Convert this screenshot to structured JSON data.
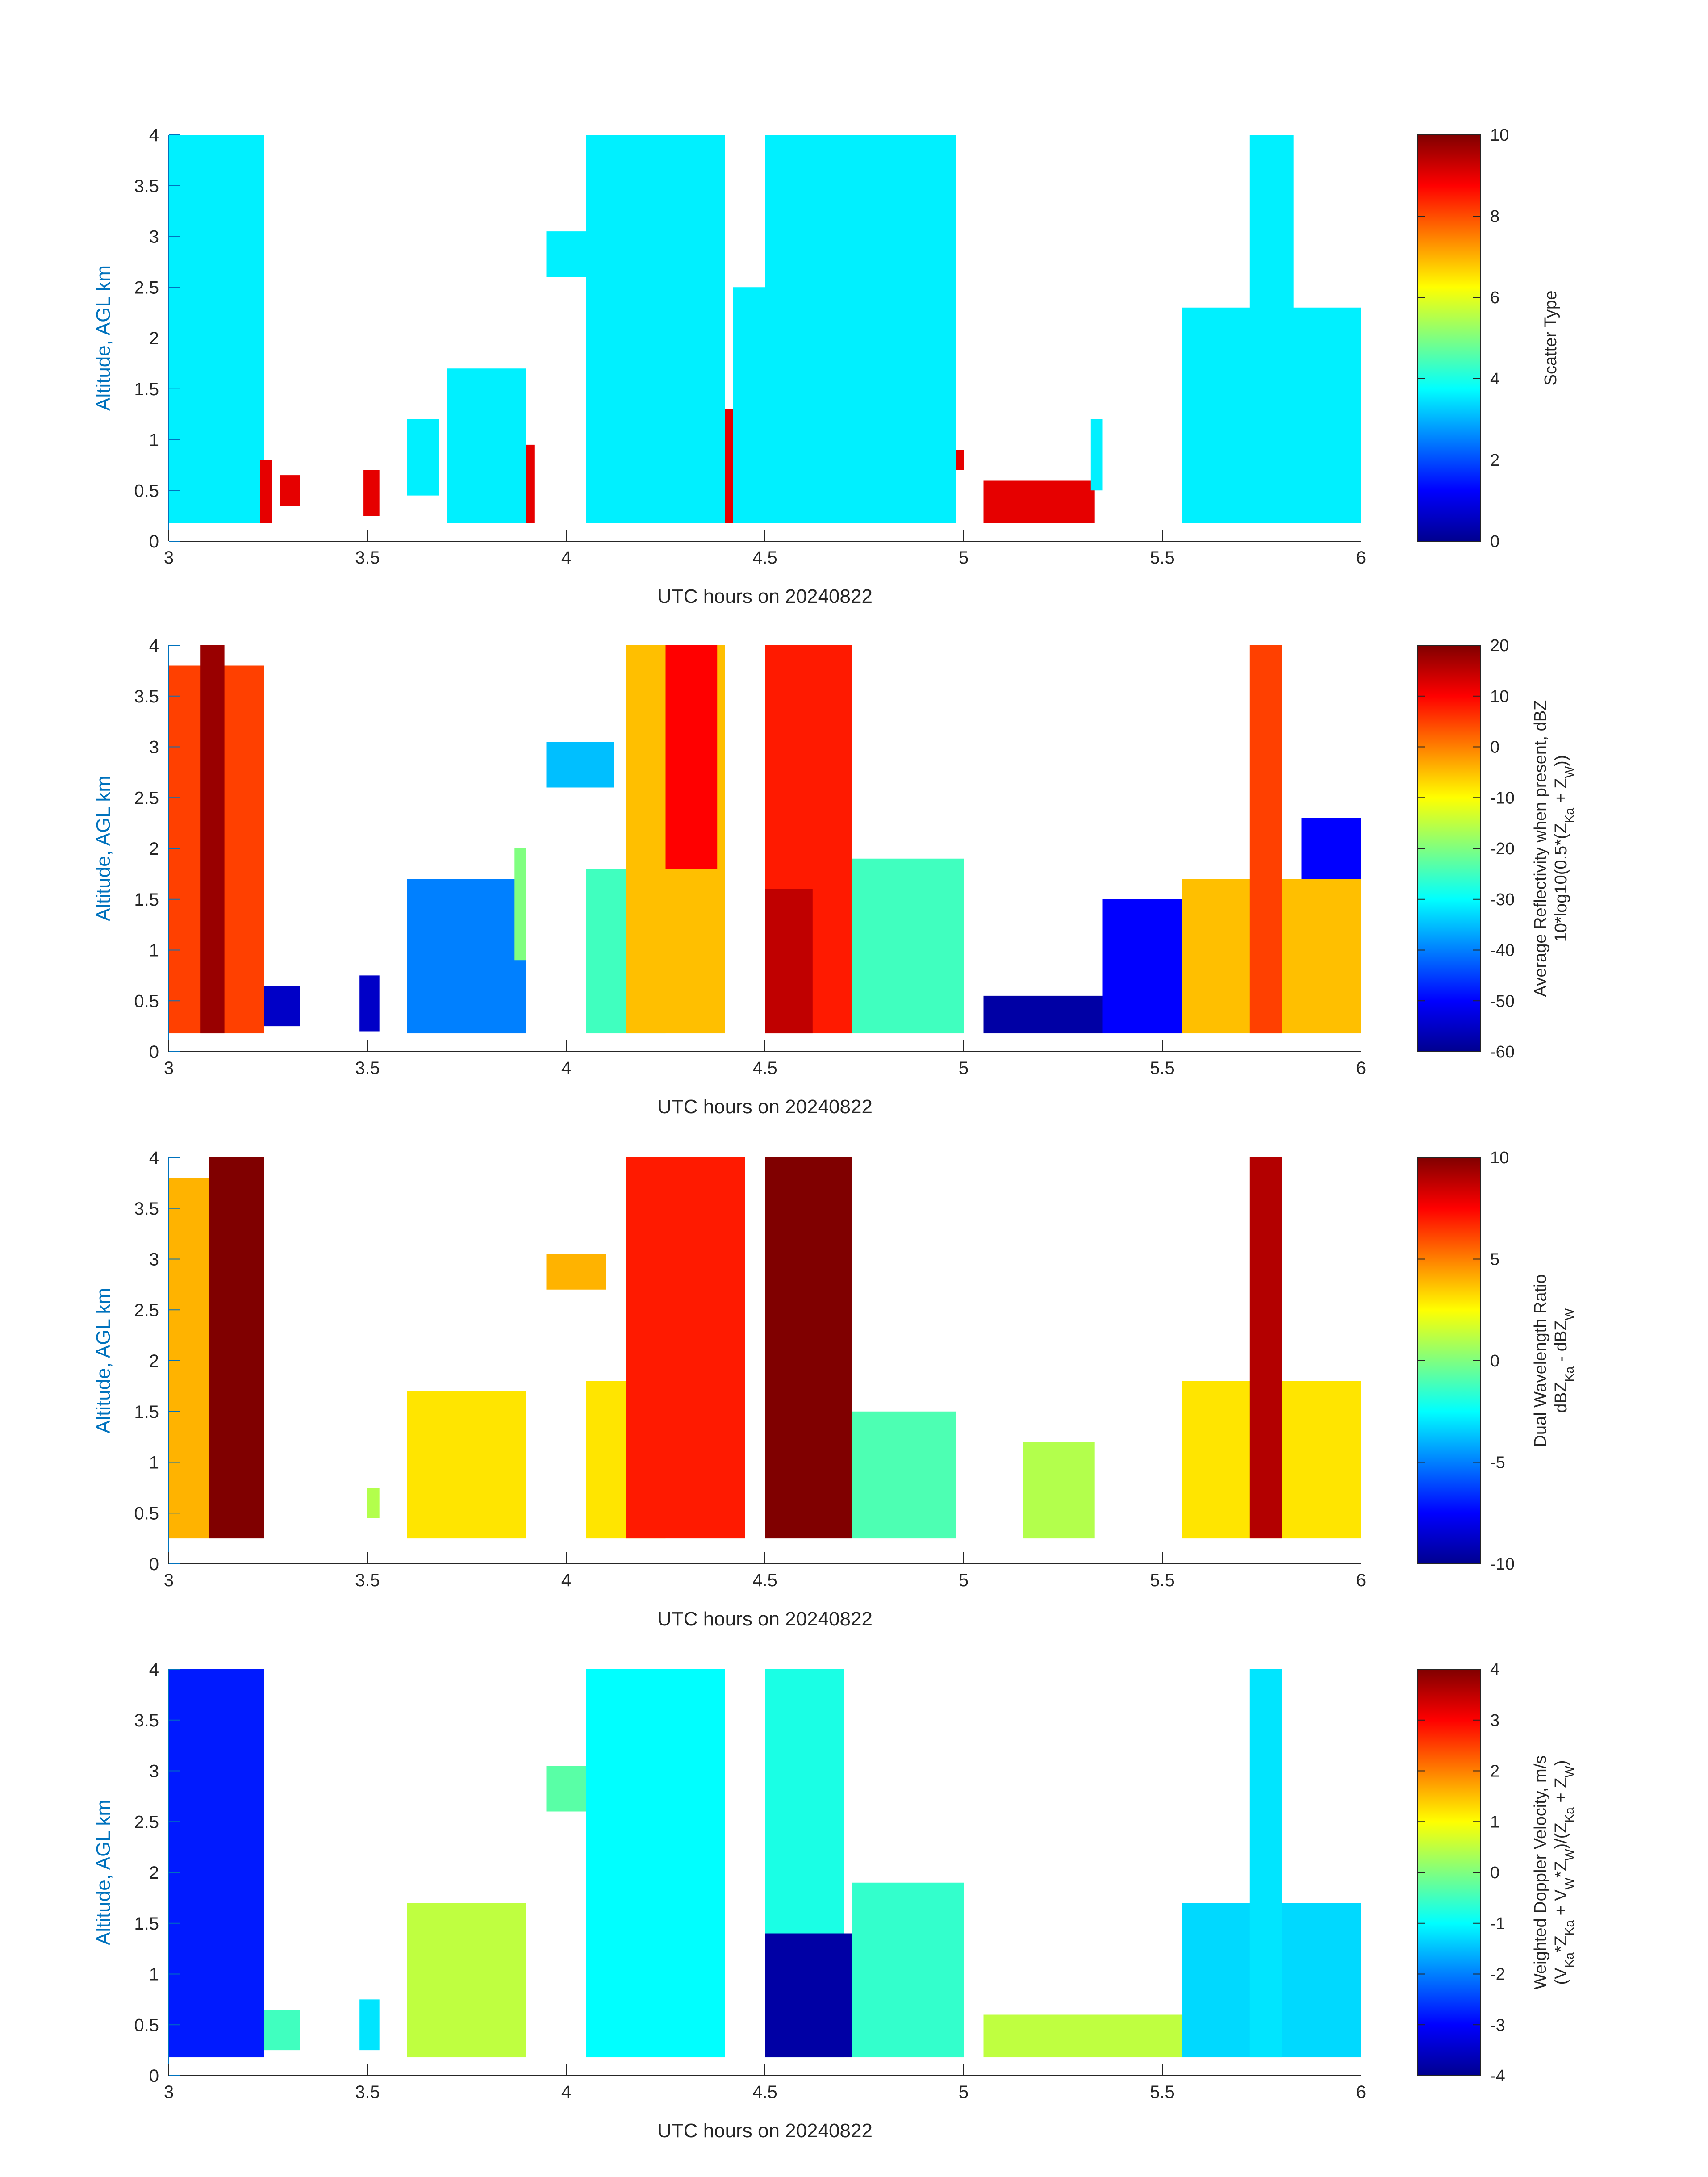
{
  "date": "20240822",
  "x_axis": {
    "label": "UTC hours on 20240822",
    "ticks": [
      "3",
      "3.5",
      "4",
      "4.5",
      "5",
      "5.5",
      "6"
    ],
    "range": [
      3,
      6
    ]
  },
  "y_axis": {
    "label": "Altitude, AGL km",
    "ticks": [
      "0",
      "0.5",
      "1",
      "1.5",
      "2",
      "2.5",
      "3",
      "3.5",
      "4"
    ],
    "range": [
      0,
      4
    ]
  },
  "chart_data": [
    {
      "type": "heatmap",
      "panel": 1,
      "xlabel": "UTC hours on 20240822",
      "ylabel": "Altitude, AGL km",
      "xlim": [
        3,
        6
      ],
      "ylim": [
        0,
        4
      ],
      "colorbar": {
        "label_lines": [
          "Scatter Type"
        ],
        "ticks": [
          "0",
          "2",
          "4",
          "6",
          "8",
          "10"
        ],
        "range": [
          0,
          10
        ]
      },
      "regions": [
        {
          "x": [
            3.0,
            3.24
          ],
          "y": [
            0.18,
            4.0
          ],
          "value": 3.6
        },
        {
          "x": [
            3.23,
            3.26
          ],
          "y": [
            0.18,
            0.8
          ],
          "value": 9.0
        },
        {
          "x": [
            3.28,
            3.33
          ],
          "y": [
            0.35,
            0.65
          ],
          "value": 9.0
        },
        {
          "x": [
            3.49,
            3.53
          ],
          "y": [
            0.25,
            0.7
          ],
          "value": 9.0
        },
        {
          "x": [
            3.6,
            3.68
          ],
          "y": [
            0.45,
            1.2
          ],
          "value": 3.6
        },
        {
          "x": [
            3.7,
            3.9
          ],
          "y": [
            0.18,
            1.7
          ],
          "value": 3.6
        },
        {
          "x": [
            3.9,
            3.92
          ],
          "y": [
            0.18,
            0.95
          ],
          "value": 9.0
        },
        {
          "x": [
            3.95,
            4.08
          ],
          "y": [
            2.6,
            3.05
          ],
          "value": 3.6
        },
        {
          "x": [
            4.05,
            4.4
          ],
          "y": [
            0.18,
            4.0
          ],
          "value": 3.6
        },
        {
          "x": [
            4.4,
            4.42
          ],
          "y": [
            0.18,
            1.3
          ],
          "value": 9.0
        },
        {
          "x": [
            4.42,
            4.5
          ],
          "y": [
            0.18,
            2.5
          ],
          "value": 3.6
        },
        {
          "x": [
            4.5,
            4.98
          ],
          "y": [
            0.18,
            4.0
          ],
          "value": 3.6
        },
        {
          "x": [
            4.98,
            5.0
          ],
          "y": [
            0.7,
            0.9
          ],
          "value": 9.0
        },
        {
          "x": [
            5.05,
            5.33
          ],
          "y": [
            0.18,
            0.6
          ],
          "value": 9.0
        },
        {
          "x": [
            5.32,
            5.35
          ],
          "y": [
            0.5,
            1.2
          ],
          "value": 3.6
        },
        {
          "x": [
            5.55,
            6.0
          ],
          "y": [
            0.18,
            2.3
          ],
          "value": 3.6
        },
        {
          "x": [
            5.72,
            5.83
          ],
          "y": [
            0.18,
            4.0
          ],
          "value": 3.6
        }
      ]
    },
    {
      "type": "heatmap",
      "panel": 2,
      "xlabel": "UTC hours on 20240822",
      "ylabel": "Altitude, AGL km",
      "xlim": [
        3,
        6
      ],
      "ylim": [
        0,
        4
      ],
      "colorbar": {
        "label_lines": [
          "Average Reflectivity when present, dBZ",
          "10*log10(0.5*(Z_Ka + Z_W))"
        ],
        "ticks": [
          "-60",
          "-50",
          "-40",
          "-30",
          "-20",
          "-10",
          "0",
          "10",
          "20"
        ],
        "range": [
          -60,
          20
        ]
      },
      "regions": [
        {
          "x": [
            3.0,
            3.24
          ],
          "y": [
            0.18,
            3.8
          ],
          "value": 5
        },
        {
          "x": [
            3.08,
            3.14
          ],
          "y": [
            0.18,
            4.0
          ],
          "value": 18
        },
        {
          "x": [
            3.24,
            3.33
          ],
          "y": [
            0.25,
            0.65
          ],
          "value": -55
        },
        {
          "x": [
            3.48,
            3.53
          ],
          "y": [
            0.2,
            0.75
          ],
          "value": -55
        },
        {
          "x": [
            3.6,
            3.9
          ],
          "y": [
            0.18,
            1.7
          ],
          "value": -40
        },
        {
          "x": [
            3.87,
            3.9
          ],
          "y": [
            0.9,
            2.0
          ],
          "value": -20
        },
        {
          "x": [
            3.95,
            4.12
          ],
          "y": [
            2.6,
            3.05
          ],
          "value": -35
        },
        {
          "x": [
            4.05,
            4.25
          ],
          "y": [
            0.18,
            1.8
          ],
          "value": -25
        },
        {
          "x": [
            4.15,
            4.4
          ],
          "y": [
            0.18,
            4.0
          ],
          "value": -5
        },
        {
          "x": [
            4.25,
            4.38
          ],
          "y": [
            1.8,
            4.0
          ],
          "value": 10
        },
        {
          "x": [
            4.5,
            4.72
          ],
          "y": [
            0.18,
            4.0
          ],
          "value": 8
        },
        {
          "x": [
            4.5,
            4.62
          ],
          "y": [
            0.18,
            1.6
          ],
          "value": 15
        },
        {
          "x": [
            4.72,
            5.0
          ],
          "y": [
            0.18,
            1.9
          ],
          "value": -25
        },
        {
          "x": [
            5.05,
            5.35
          ],
          "y": [
            0.18,
            0.55
          ],
          "value": -58
        },
        {
          "x": [
            5.35,
            5.55
          ],
          "y": [
            0.18,
            1.5
          ],
          "value": -50
        },
        {
          "x": [
            5.55,
            6.0
          ],
          "y": [
            0.18,
            1.7
          ],
          "value": -5
        },
        {
          "x": [
            5.72,
            5.8
          ],
          "y": [
            0.18,
            4.0
          ],
          "value": 5
        },
        {
          "x": [
            5.85,
            6.0
          ],
          "y": [
            1.7,
            2.3
          ],
          "value": -50
        }
      ]
    },
    {
      "type": "heatmap",
      "panel": 3,
      "xlabel": "UTC hours on 20240822",
      "ylabel": "Altitude, AGL km",
      "xlim": [
        3,
        6
      ],
      "ylim": [
        0,
        4
      ],
      "colorbar": {
        "label_lines": [
          "Dual Wavelength Ratio",
          "dBZ_Ka - dBZ_W"
        ],
        "ticks": [
          "-10",
          "-5",
          "0",
          "5",
          "10"
        ],
        "range": [
          -10,
          10
        ]
      },
      "regions": [
        {
          "x": [
            3.0,
            3.1
          ],
          "y": [
            0.25,
            3.8
          ],
          "value": 4
        },
        {
          "x": [
            3.1,
            3.24
          ],
          "y": [
            0.25,
            4.0
          ],
          "value": 10
        },
        {
          "x": [
            3.5,
            3.53
          ],
          "y": [
            0.45,
            0.75
          ],
          "value": 1
        },
        {
          "x": [
            3.6,
            3.9
          ],
          "y": [
            0.25,
            1.7
          ],
          "value": 3
        },
        {
          "x": [
            3.95,
            4.1
          ],
          "y": [
            2.7,
            3.05
          ],
          "value": 4
        },
        {
          "x": [
            4.05,
            4.25
          ],
          "y": [
            0.25,
            1.8
          ],
          "value": 3
        },
        {
          "x": [
            4.15,
            4.45
          ],
          "y": [
            0.25,
            4.0
          ],
          "value": 7
        },
        {
          "x": [
            4.5,
            4.72
          ],
          "y": [
            0.25,
            4.0
          ],
          "value": 10
        },
        {
          "x": [
            4.72,
            4.98
          ],
          "y": [
            0.25,
            1.5
          ],
          "value": -1
        },
        {
          "x": [
            5.15,
            5.33
          ],
          "y": [
            0.25,
            1.2
          ],
          "value": 1
        },
        {
          "x": [
            5.55,
            6.0
          ],
          "y": [
            0.25,
            1.8
          ],
          "value": 3
        },
        {
          "x": [
            5.72,
            5.8
          ],
          "y": [
            0.25,
            4.0
          ],
          "value": 9
        }
      ]
    },
    {
      "type": "heatmap",
      "panel": 4,
      "xlabel": "UTC hours on 20240822",
      "ylabel": "Altitude, AGL km",
      "xlim": [
        3,
        6
      ],
      "ylim": [
        0,
        4
      ],
      "colorbar": {
        "label_lines": [
          "Weighted Doppler Velocity, m/s",
          "(V_Ka*Z_Ka + V_W*Z_W)/(Z_Ka + Z_W)"
        ],
        "ticks": [
          "-4",
          "-3",
          "-2",
          "-1",
          "0",
          "1",
          "2",
          "3",
          "4"
        ],
        "range": [
          -4,
          4
        ]
      },
      "regions": [
        {
          "x": [
            3.0,
            3.24
          ],
          "y": [
            0.18,
            4.0
          ],
          "value": -2.8
        },
        {
          "x": [
            3.24,
            3.33
          ],
          "y": [
            0.25,
            0.65
          ],
          "value": -0.5
        },
        {
          "x": [
            3.48,
            3.53
          ],
          "y": [
            0.25,
            0.75
          ],
          "value": -1.2
        },
        {
          "x": [
            3.6,
            3.9
          ],
          "y": [
            0.18,
            1.7
          ],
          "value": 0.5
        },
        {
          "x": [
            3.95,
            4.12
          ],
          "y": [
            2.6,
            3.05
          ],
          "value": -0.3
        },
        {
          "x": [
            4.05,
            4.4
          ],
          "y": [
            0.18,
            4.0
          ],
          "value": -1.0
        },
        {
          "x": [
            4.5,
            4.7
          ],
          "y": [
            0.18,
            4.0
          ],
          "value": -0.8
        },
        {
          "x": [
            4.5,
            4.72
          ],
          "y": [
            0.18,
            1.4
          ],
          "value": -3.8
        },
        {
          "x": [
            4.72,
            5.0
          ],
          "y": [
            0.18,
            1.9
          ],
          "value": -0.6
        },
        {
          "x": [
            5.05,
            5.55
          ],
          "y": [
            0.18,
            0.6
          ],
          "value": 0.5
        },
        {
          "x": [
            5.55,
            6.0
          ],
          "y": [
            0.18,
            1.7
          ],
          "value": -1.3
        },
        {
          "x": [
            5.72,
            5.8
          ],
          "y": [
            0.18,
            4.0
          ],
          "value": -1.2
        }
      ]
    }
  ]
}
